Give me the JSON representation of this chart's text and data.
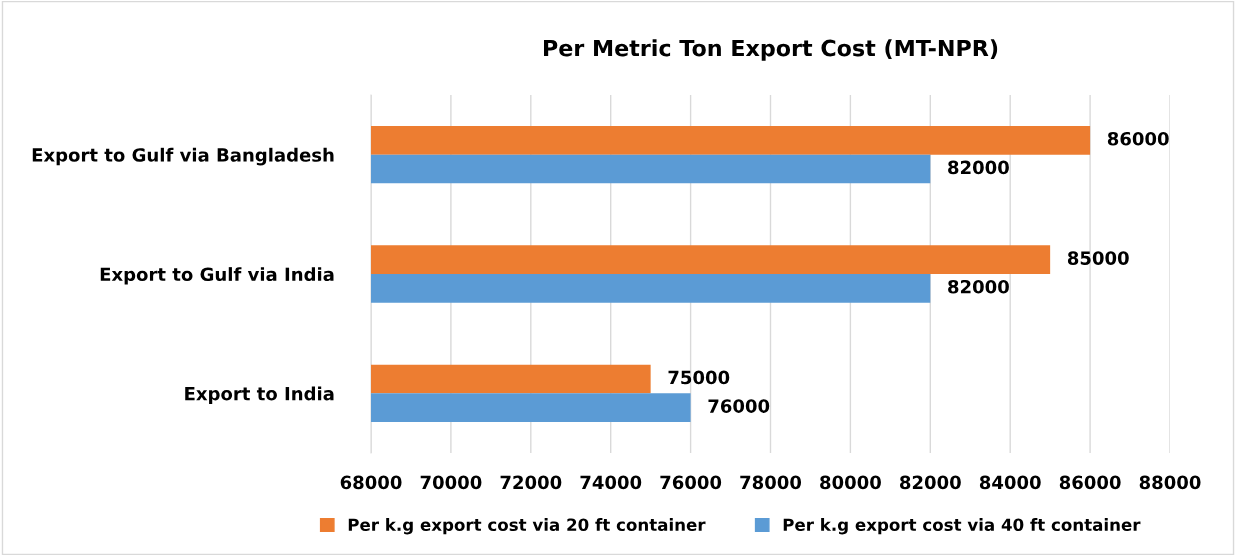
{
  "chart_data": {
    "type": "bar",
    "orientation": "horizontal",
    "title": "Per Metric Ton Export Cost (MT-NPR)",
    "categories": [
      "Export to Gulf via Bangladesh",
      "Export to Gulf via India",
      "Export to India"
    ],
    "series": [
      {
        "name": "Per k.g export cost via 20 ft container",
        "color": "#ed7d31",
        "values": [
          86000,
          85000,
          75000
        ]
      },
      {
        "name": "Per k.g export cost via 40 ft container",
        "color": "#5b9bd5",
        "values": [
          82000,
          82000,
          76000
        ]
      }
    ],
    "xlim": [
      68000,
      88000
    ],
    "xticks": [
      68000,
      70000,
      72000,
      74000,
      76000,
      78000,
      80000,
      82000,
      84000,
      86000,
      88000
    ],
    "grid": "x",
    "legend": "bottom",
    "data_labels": true
  }
}
